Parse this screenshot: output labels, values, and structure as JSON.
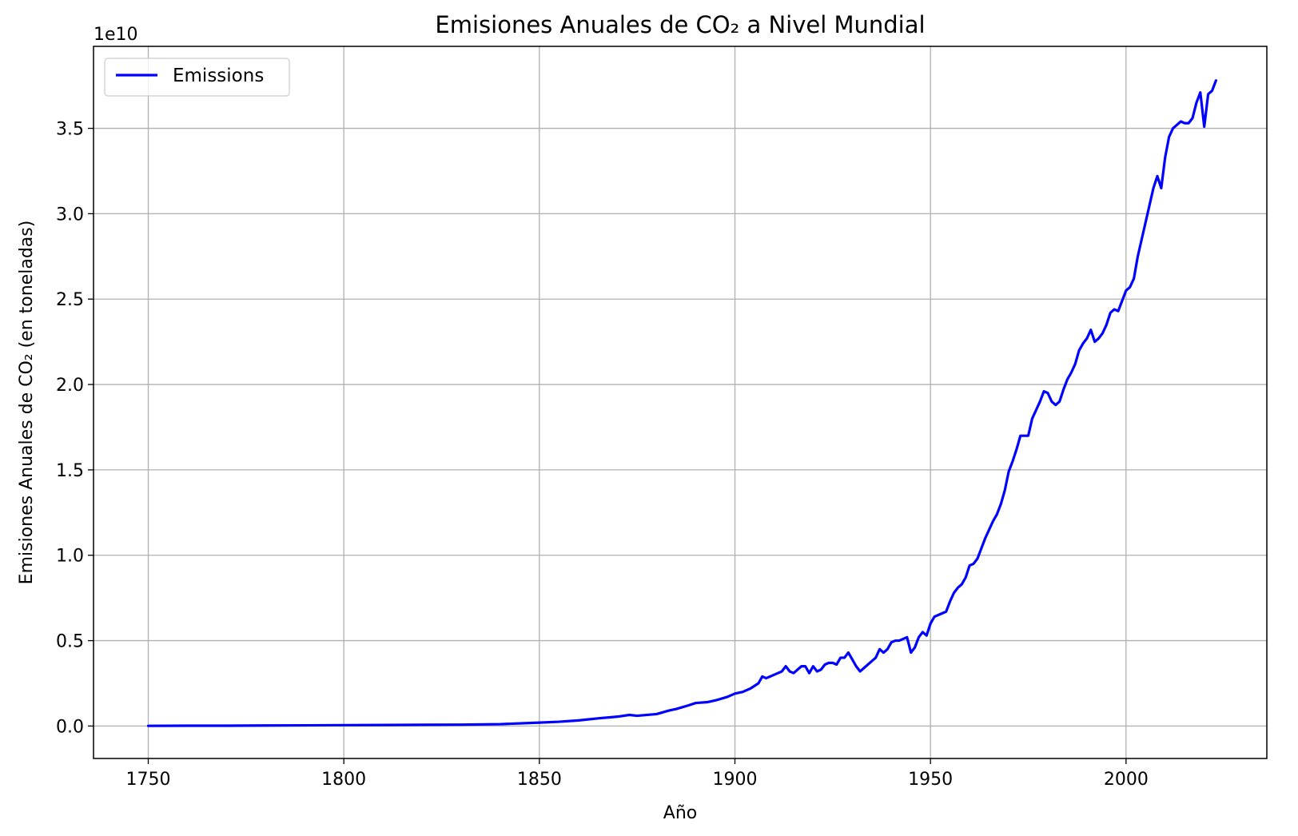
{
  "chart_data": {
    "type": "line",
    "title": "Emisiones Anuales de CO₂ a Nivel Mundial",
    "xlabel": "Año",
    "ylabel": "Emisiones Anuales de CO₂ (en toneladas)",
    "y_offset_label": "1e10",
    "xlim": [
      1736,
      2036
    ],
    "ylim": [
      -0.19,
      3.98
    ],
    "y_unit_multiplier": 10000000000.0,
    "x_ticks": [
      1750,
      1800,
      1850,
      1900,
      1950,
      2000
    ],
    "x_tick_labels": [
      "1750",
      "1800",
      "1850",
      "1900",
      "1950",
      "2000"
    ],
    "y_ticks": [
      0.0,
      0.5,
      1.0,
      1.5,
      2.0,
      2.5,
      3.0,
      3.5
    ],
    "y_tick_labels": [
      "0.0",
      "0.5",
      "1.0",
      "1.5",
      "2.0",
      "2.5",
      "3.0",
      "3.5"
    ],
    "grid": true,
    "legend_position": "top-left",
    "line_color": "#0000ff",
    "grid_color": "#b0b0b0",
    "series": [
      {
        "name": "Emissions",
        "x": [
          1750,
          1760,
          1770,
          1780,
          1790,
          1800,
          1810,
          1820,
          1830,
          1840,
          1850,
          1855,
          1860,
          1865,
          1870,
          1873,
          1875,
          1880,
          1883,
          1885,
          1888,
          1890,
          1893,
          1895,
          1898,
          1900,
          1902,
          1904,
          1906,
          1907,
          1908,
          1910,
          1912,
          1913,
          1914,
          1915,
          1917,
          1918,
          1919,
          1920,
          1921,
          1922,
          1923,
          1924,
          1925,
          1926,
          1927,
          1928,
          1929,
          1930,
          1931,
          1932,
          1933,
          1935,
          1936,
          1937,
          1938,
          1939,
          1940,
          1941,
          1942,
          1943,
          1944,
          1945,
          1946,
          1947,
          1948,
          1949,
          1950,
          1951,
          1952,
          1953,
          1954,
          1955,
          1956,
          1957,
          1958,
          1959,
          1960,
          1961,
          1962,
          1963,
          1964,
          1965,
          1966,
          1967,
          1968,
          1969,
          1970,
          1971,
          1972,
          1973,
          1974,
          1975,
          1976,
          1977,
          1978,
          1979,
          1980,
          1981,
          1982,
          1983,
          1984,
          1985,
          1986,
          1987,
          1988,
          1989,
          1990,
          1991,
          1992,
          1993,
          1994,
          1995,
          1996,
          1997,
          1998,
          1999,
          2000,
          2001,
          2002,
          2003,
          2004,
          2005,
          2006,
          2007,
          2008,
          2009,
          2010,
          2011,
          2012,
          2013,
          2014,
          2015,
          2016,
          2017,
          2018,
          2019,
          2020,
          2021,
          2022,
          2023
        ],
        "y": [
          0.001,
          0.002,
          0.002,
          0.003,
          0.004,
          0.005,
          0.006,
          0.007,
          0.008,
          0.011,
          0.02,
          0.025,
          0.033,
          0.045,
          0.055,
          0.065,
          0.06,
          0.07,
          0.09,
          0.1,
          0.12,
          0.135,
          0.14,
          0.15,
          0.17,
          0.19,
          0.2,
          0.22,
          0.25,
          0.29,
          0.28,
          0.3,
          0.32,
          0.35,
          0.32,
          0.31,
          0.35,
          0.35,
          0.31,
          0.35,
          0.32,
          0.33,
          0.36,
          0.37,
          0.37,
          0.36,
          0.4,
          0.4,
          0.43,
          0.39,
          0.35,
          0.32,
          0.34,
          0.38,
          0.4,
          0.45,
          0.43,
          0.45,
          0.49,
          0.5,
          0.5,
          0.51,
          0.52,
          0.43,
          0.46,
          0.52,
          0.55,
          0.53,
          0.6,
          0.64,
          0.65,
          0.66,
          0.67,
          0.73,
          0.78,
          0.81,
          0.83,
          0.87,
          0.94,
          0.95,
          0.98,
          1.04,
          1.1,
          1.15,
          1.2,
          1.24,
          1.3,
          1.38,
          1.49,
          1.55,
          1.62,
          1.7,
          1.7,
          1.7,
          1.8,
          1.85,
          1.9,
          1.96,
          1.95,
          1.9,
          1.88,
          1.9,
          1.97,
          2.03,
          2.07,
          2.12,
          2.2,
          2.24,
          2.27,
          2.32,
          2.25,
          2.27,
          2.3,
          2.35,
          2.42,
          2.44,
          2.43,
          2.49,
          2.55,
          2.57,
          2.62,
          2.75,
          2.85,
          2.95,
          3.05,
          3.15,
          3.22,
          3.15,
          3.33,
          3.45,
          3.5,
          3.52,
          3.54,
          3.53,
          3.53,
          3.56,
          3.65,
          3.71,
          3.51,
          3.7,
          3.72,
          3.78
        ]
      }
    ]
  }
}
